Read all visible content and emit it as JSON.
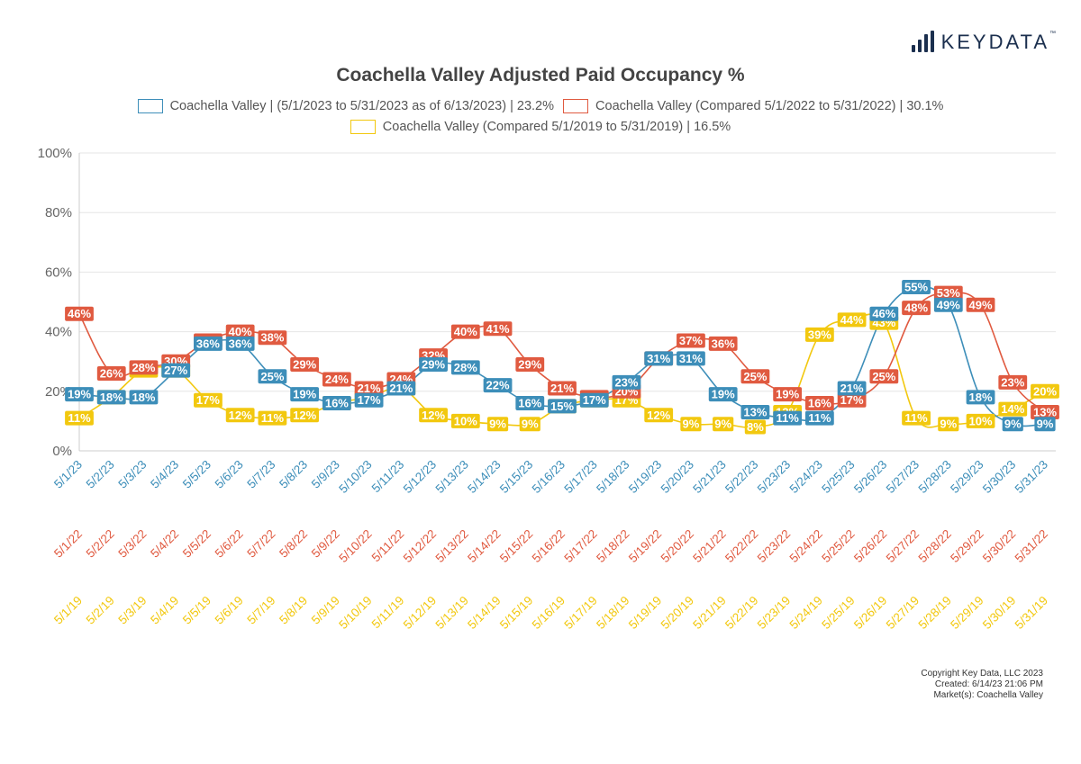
{
  "brand": {
    "name": "KEYDATA",
    "tm": "™"
  },
  "colors": {
    "blue": "#3d8eb9",
    "red": "#e05a40",
    "yellow": "#f2c80f",
    "grid": "#e6e6e6",
    "axis": "#cccccc"
  },
  "chart_data": {
    "type": "line",
    "title": "Coachella Valley Adjusted Paid Occupancy %",
    "ylim": [
      0,
      100
    ],
    "yticks": [
      "0%",
      "20%",
      "40%",
      "60%",
      "80%",
      "100%"
    ],
    "legend": [
      "Coachella Valley | (5/1/2023 to 5/31/2023 as of 6/13/2023) | 23.2%",
      "Coachella Valley (Compared 5/1/2022 to 5/31/2022) | 30.1%",
      "Coachella Valley (Compared 5/1/2019 to 5/31/2019) | 16.5%"
    ],
    "categories": [
      "5/1/23",
      "5/2/23",
      "5/3/23",
      "5/4/23",
      "5/5/23",
      "5/6/23",
      "5/7/23",
      "5/8/23",
      "5/9/23",
      "5/10/23",
      "5/11/23",
      "5/12/23",
      "5/13/23",
      "5/14/23",
      "5/15/23",
      "5/16/23",
      "5/17/23",
      "5/18/23",
      "5/19/23",
      "5/20/23",
      "5/21/23",
      "5/22/23",
      "5/23/23",
      "5/24/23",
      "5/25/23",
      "5/26/23",
      "5/27/23",
      "5/28/23",
      "5/29/23",
      "5/30/23",
      "5/31/23"
    ],
    "categories_2022": [
      "5/1/22",
      "5/2/22",
      "5/3/22",
      "5/4/22",
      "5/5/22",
      "5/6/22",
      "5/7/22",
      "5/8/22",
      "5/9/22",
      "5/10/22",
      "5/11/22",
      "5/12/22",
      "5/13/22",
      "5/14/22",
      "5/15/22",
      "5/16/22",
      "5/17/22",
      "5/18/22",
      "5/19/22",
      "5/20/22",
      "5/21/22",
      "5/22/22",
      "5/23/22",
      "5/24/22",
      "5/25/22",
      "5/26/22",
      "5/27/22",
      "5/28/22",
      "5/29/22",
      "5/30/22",
      "5/31/22"
    ],
    "categories_2019": [
      "5/1/19",
      "5/2/19",
      "5/3/19",
      "5/4/19",
      "5/5/19",
      "5/6/19",
      "5/7/19",
      "5/8/19",
      "5/9/19",
      "5/10/19",
      "5/11/19",
      "5/12/19",
      "5/13/19",
      "5/14/19",
      "5/15/19",
      "5/16/19",
      "5/17/19",
      "5/18/19",
      "5/19/19",
      "5/20/19",
      "5/21/19",
      "5/22/19",
      "5/23/19",
      "5/24/19",
      "5/25/19",
      "5/26/19",
      "5/27/19",
      "5/28/19",
      "5/29/19",
      "5/30/19",
      "5/31/19"
    ],
    "series": [
      {
        "name": "2023",
        "color": "#3d8eb9",
        "values": [
          19,
          18,
          18,
          27,
          36,
          36,
          25,
          19,
          16,
          17,
          21,
          29,
          28,
          22,
          16,
          15,
          17,
          23,
          31,
          31,
          19,
          13,
          11,
          11,
          21,
          46,
          55,
          49,
          18,
          9,
          9
        ]
      },
      {
        "name": "2022",
        "color": "#e05a40",
        "values": [
          46,
          26,
          28,
          30,
          37,
          40,
          38,
          29,
          24,
          21,
          24,
          32,
          40,
          41,
          29,
          21,
          18,
          20,
          31,
          37,
          36,
          25,
          19,
          16,
          17,
          25,
          48,
          53,
          49,
          23,
          13
        ]
      },
      {
        "name": "2019",
        "color": "#f2c80f",
        "values": [
          11,
          18,
          27,
          27,
          17,
          12,
          11,
          12,
          16,
          18,
          21,
          12,
          10,
          9,
          9,
          15,
          17,
          17,
          12,
          9,
          9,
          8,
          13,
          39,
          44,
          43,
          11,
          9,
          10,
          14,
          20
        ]
      }
    ]
  },
  "footer": {
    "copyright": "Copyright Key Data, LLC 2023",
    "created": "Created: 6/14/23 21:06 PM",
    "market": "Market(s):  Coachella Valley"
  }
}
